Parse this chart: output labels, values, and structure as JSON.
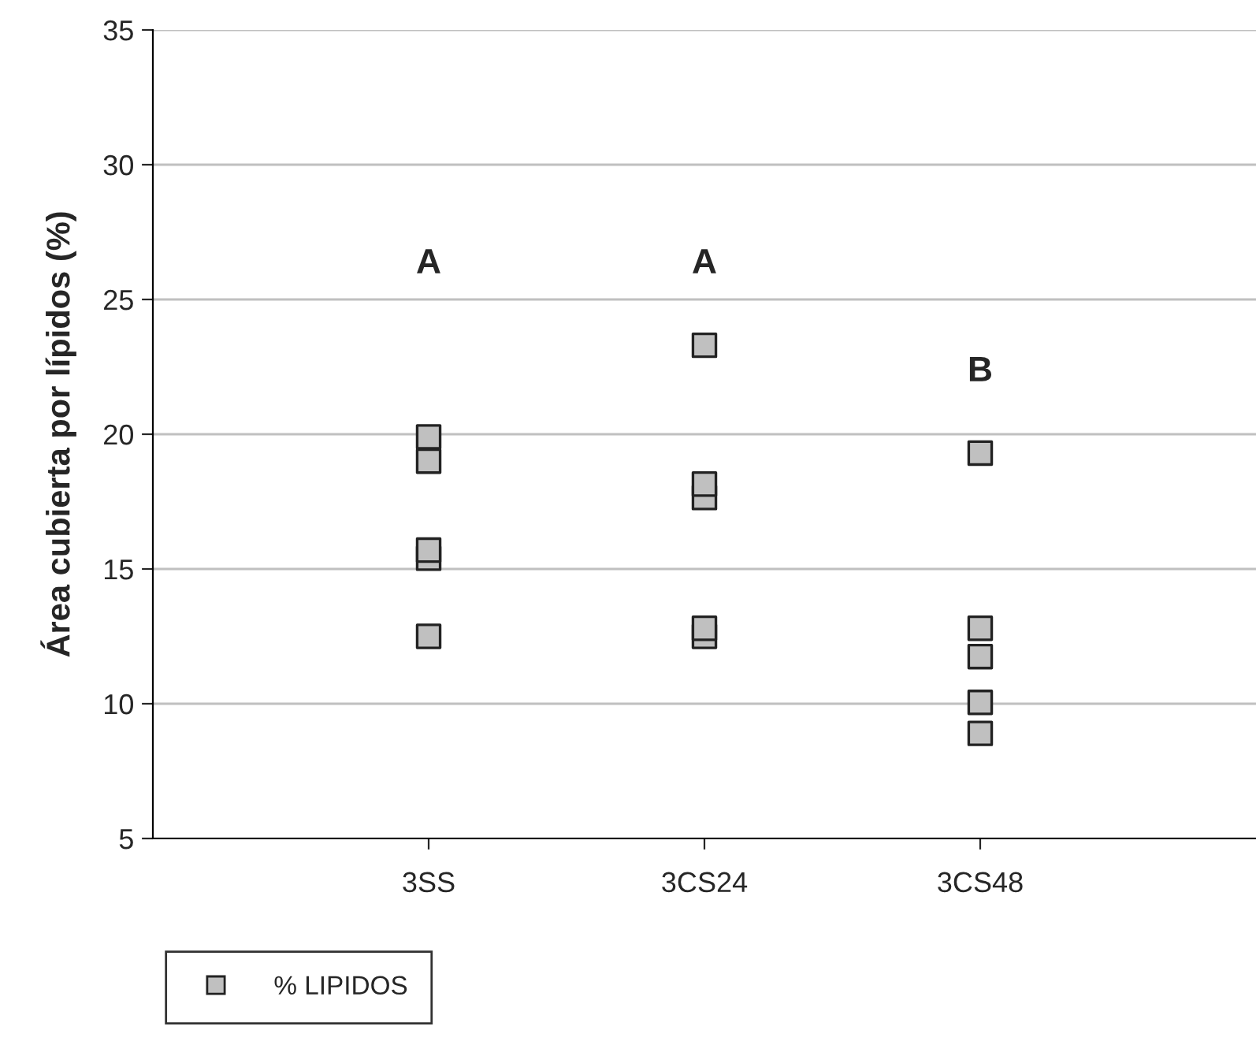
{
  "chart_data": {
    "type": "scatter",
    "ylabel": "Área cubierta por lípidos (%)",
    "categories": [
      "3SS",
      "3CS24",
      "3CS48"
    ],
    "series": [
      {
        "name": "% LIPIDOS",
        "color": "#c0c0c0",
        "x": [
          "3SS",
          "3SS",
          "3SS",
          "3SS",
          "3SS",
          "3CS24",
          "3CS24",
          "3CS24",
          "3CS24",
          "3CS24",
          "3CS48",
          "3CS48",
          "3CS48",
          "3CS48",
          "3CS48"
        ],
        "values": [
          19.9,
          19.0,
          15.4,
          15.7,
          12.5,
          23.3,
          17.65,
          18.15,
          12.5,
          12.8,
          19.3,
          12.8,
          11.75,
          10.05,
          8.9
        ]
      }
    ],
    "annotations": [
      "A",
      "A",
      "B"
    ],
    "ylim": [
      5,
      35
    ],
    "yticks": [
      5,
      10,
      15,
      20,
      25,
      30,
      35
    ],
    "grid": "y",
    "legend": "bottom left",
    "marker": "square"
  }
}
